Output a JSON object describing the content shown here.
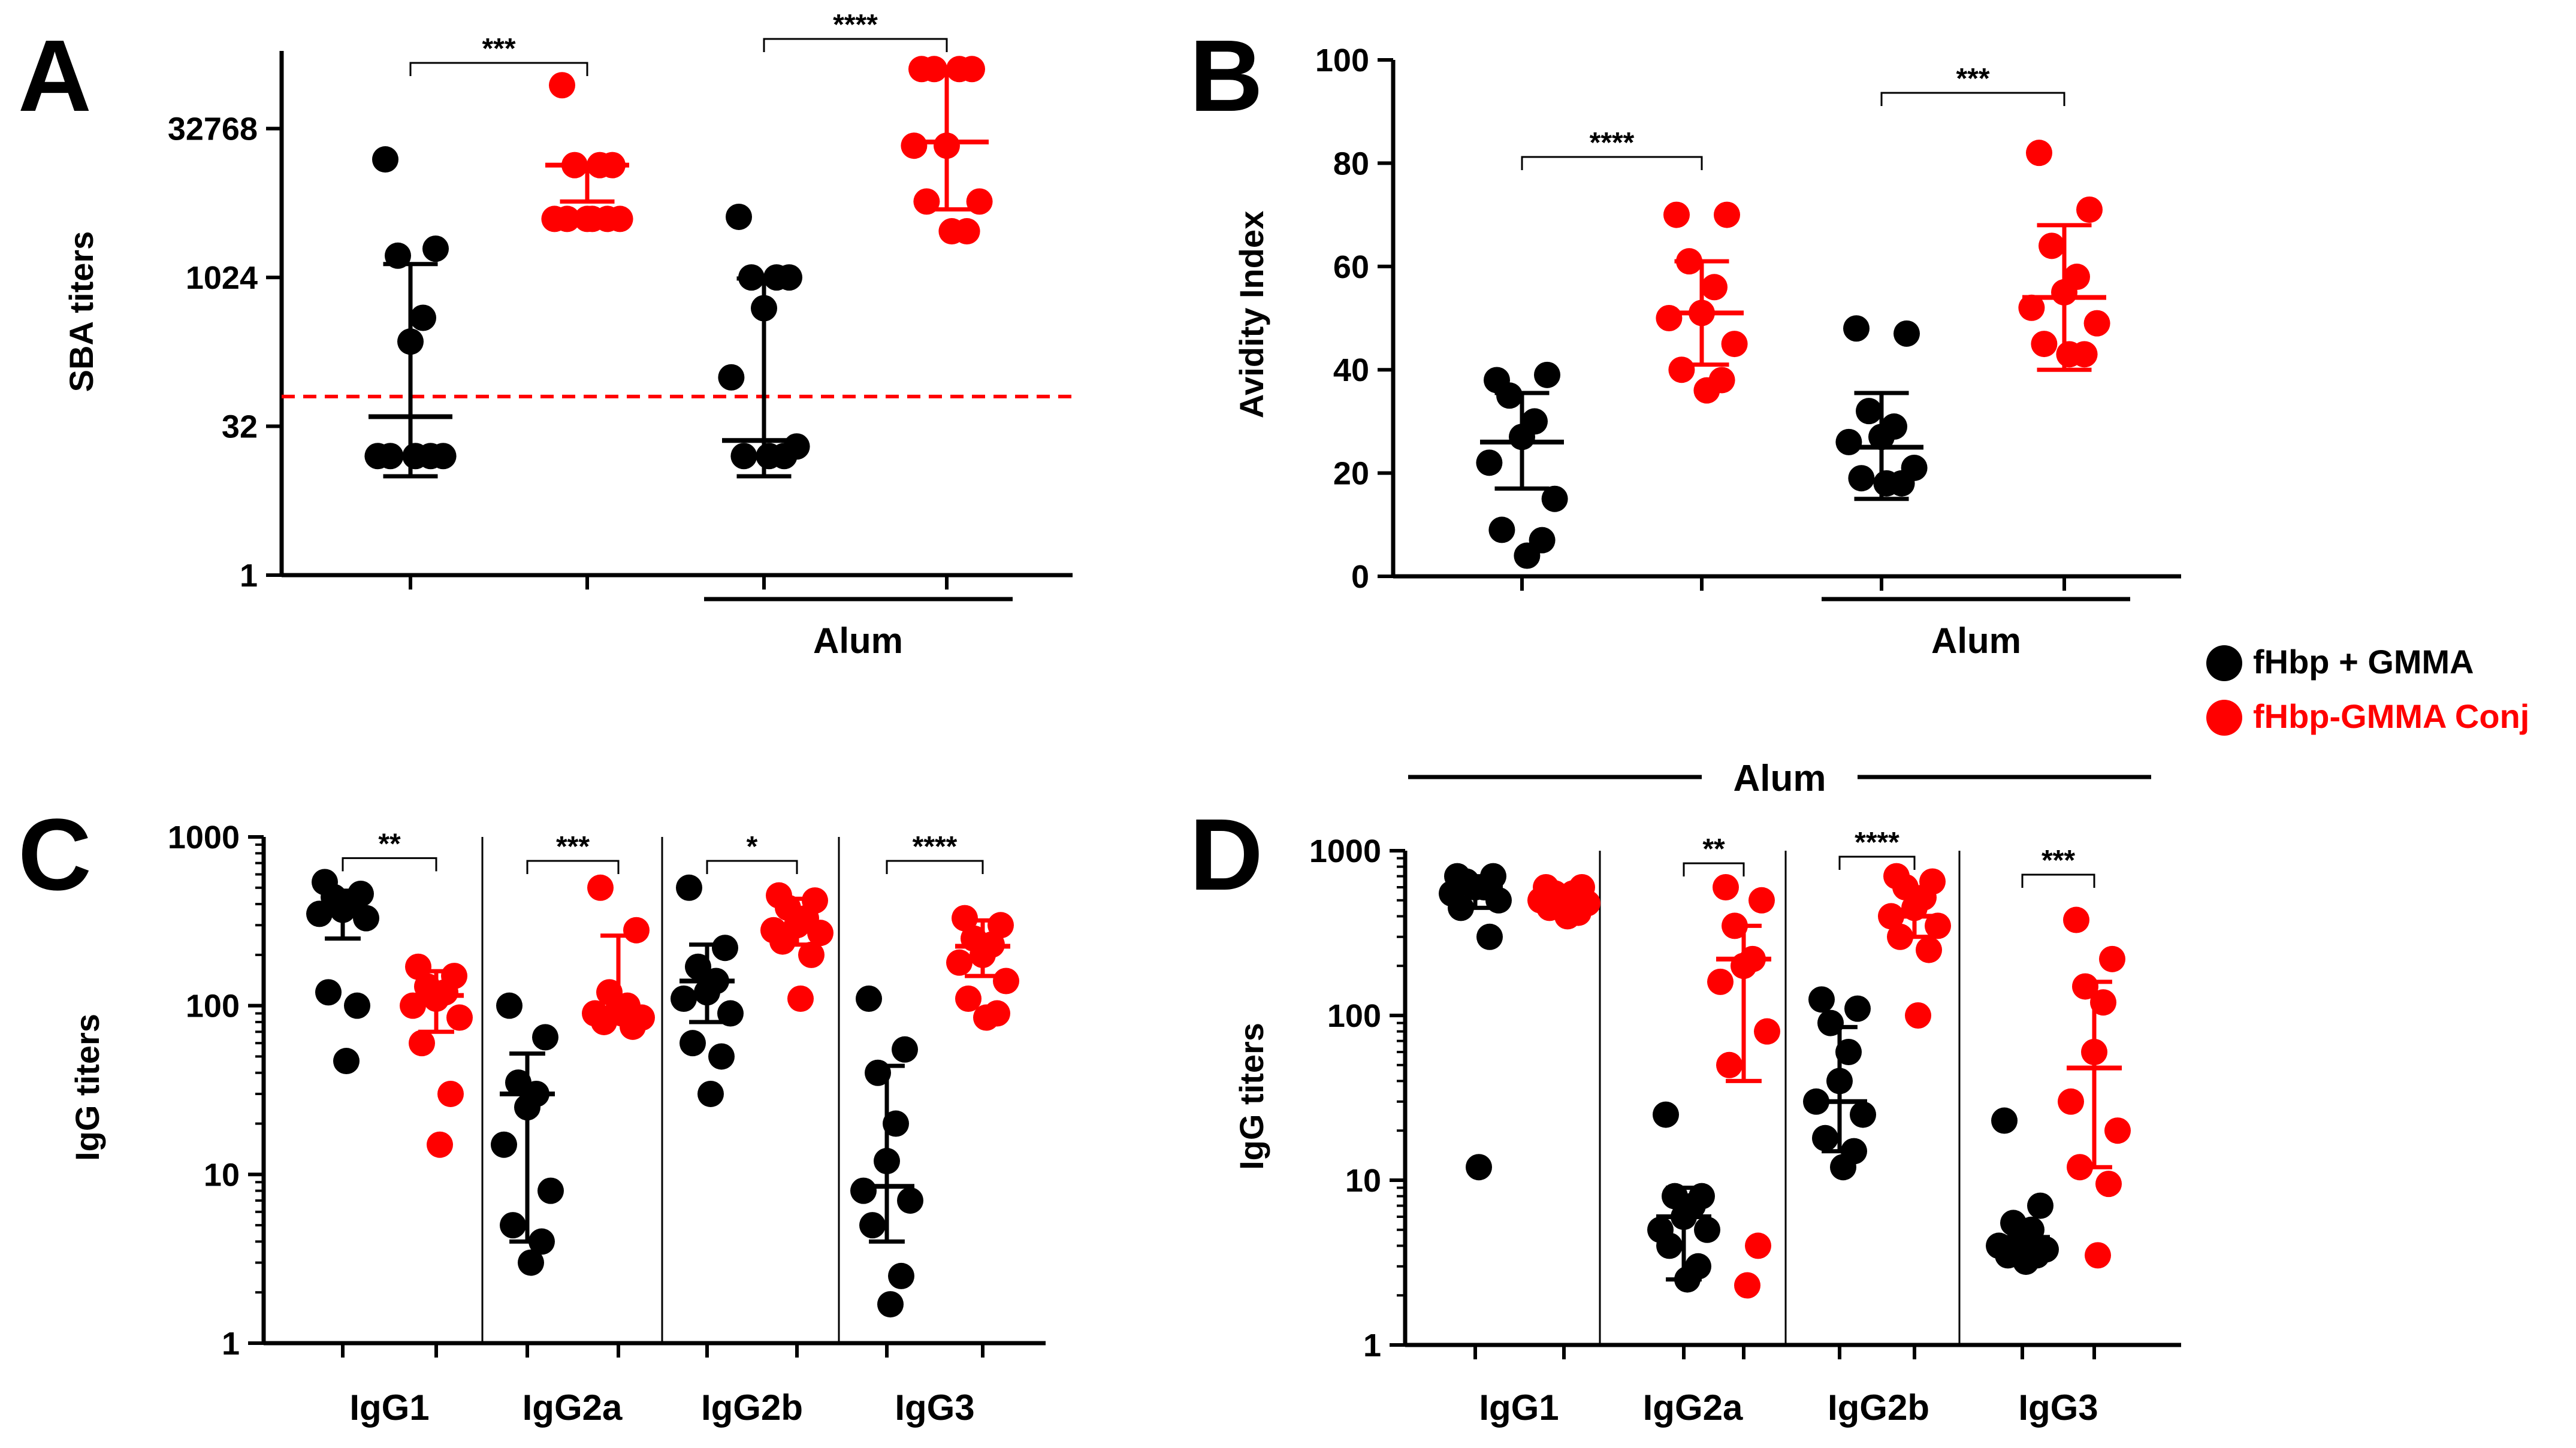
{
  "colors": {
    "groupA": "#000000",
    "groupB": "#ff0000"
  },
  "legend": {
    "items": [
      {
        "label": "fHbp + GMMA",
        "color": "#000000"
      },
      {
        "label": "fHbp-GMMA Conj",
        "color": "#ff0000"
      }
    ]
  },
  "alum_banner": "Alum",
  "chart_data": [
    {
      "id": "A",
      "type": "scatter",
      "panel_label": "A",
      "ylabel": "SBA titers",
      "yscale": "log2",
      "ylim": [
        1,
        200000
      ],
      "yticks": [
        1,
        32,
        1024,
        32768
      ],
      "ytick_labels": [
        "1",
        "32",
        "1024",
        "32768"
      ],
      "threshold": 64,
      "group_label": "Alum",
      "groups": [
        {
          "series": "fHbp + GMMA",
          "points": [
            16000,
            2000,
            1700,
            400,
            230,
            16,
            16,
            16,
            16,
            16
          ],
          "center": 40,
          "err": [
            10,
            1400
          ]
        },
        {
          "series": "fHbp-GMMA Conj",
          "points": [
            90000,
            14000,
            14000,
            14000,
            4000,
            4000,
            4000,
            4000,
            4000,
            4000
          ],
          "center": 14000,
          "err": [
            6000,
            14000
          ]
        },
        {
          "series": "fHbp + GMMA",
          "points": [
            4200,
            1024,
            1024,
            1024,
            500,
            100,
            20,
            16,
            16,
            16
          ],
          "center": 23,
          "err": [
            10,
            1000
          ]
        },
        {
          "series": "fHbp-GMMA Conj",
          "points": [
            131072,
            131072,
            131072,
            131072,
            22000,
            22000,
            6000,
            6000,
            3000,
            3000
          ],
          "center": 24000,
          "err": [
            5000,
            131072
          ]
        }
      ],
      "significance": [
        {
          "pair": [
            0,
            1
          ],
          "label": "***"
        },
        {
          "pair": [
            2,
            3
          ],
          "label": "****"
        }
      ]
    },
    {
      "id": "B",
      "type": "scatter",
      "panel_label": "B",
      "ylabel": "Avidity Index",
      "yscale": "linear",
      "ylim": [
        0,
        100
      ],
      "yticks": [
        0,
        20,
        40,
        60,
        80,
        100
      ],
      "ytick_labels": [
        "0",
        "20",
        "40",
        "60",
        "80",
        "100"
      ],
      "group_label": "Alum",
      "groups": [
        {
          "series": "fHbp + GMMA",
          "points": [
            38,
            39,
            35,
            30,
            27,
            22,
            15,
            9,
            7,
            4
          ],
          "center": 26,
          "err": [
            17,
            35.5
          ]
        },
        {
          "series": "fHbp-GMMA Conj",
          "points": [
            70,
            70,
            61,
            56,
            51,
            50,
            45,
            40,
            38,
            36
          ],
          "center": 51,
          "err": [
            41,
            61
          ]
        },
        {
          "series": "fHbp + GMMA",
          "points": [
            48,
            47,
            32,
            29,
            27,
            26,
            21,
            19,
            18,
            18
          ],
          "center": 25,
          "err": [
            15,
            35.5
          ]
        },
        {
          "series": "fHbp-GMMA Conj",
          "points": [
            82,
            71,
            64,
            58,
            55,
            52,
            49,
            45,
            43,
            43
          ],
          "center": 54,
          "err": [
            40,
            68
          ]
        }
      ],
      "significance": [
        {
          "pair": [
            0,
            1
          ],
          "label": "****"
        },
        {
          "pair": [
            2,
            3
          ],
          "label": "***"
        }
      ]
    },
    {
      "id": "C",
      "type": "scatter",
      "panel_label": "C",
      "ylabel": "IgG titers",
      "yscale": "log10",
      "ylim": [
        1,
        1000
      ],
      "yticks": [
        1,
        10,
        100,
        1000
      ],
      "ytick_labels": [
        "1",
        "10",
        "100",
        "1000"
      ],
      "categories": [
        "IgG1",
        "IgG2a",
        "IgG2b",
        "IgG3"
      ],
      "groups": [
        {
          "series": "fHbp + GMMA",
          "points": [
            540,
            460,
            440,
            400,
            370,
            350,
            330,
            120,
            100,
            47
          ],
          "center": 370,
          "err": [
            250,
            480
          ]
        },
        {
          "series": "fHbp-GMMA Conj",
          "points": [
            170,
            150,
            130,
            120,
            110,
            100,
            85,
            60,
            30,
            15
          ],
          "center": 115,
          "err": [
            70,
            160
          ]
        },
        {
          "series": "fHbp + GMMA",
          "points": [
            100,
            65,
            35,
            30,
            25,
            15,
            8,
            5,
            4,
            3
          ],
          "center": 30,
          "err": [
            4,
            52
          ]
        },
        {
          "series": "fHbp-GMMA Conj",
          "points": [
            500,
            280,
            120,
            100,
            95,
            90,
            85,
            80,
            75,
            90
          ],
          "center": 95,
          "err": [
            80,
            260
          ]
        },
        {
          "series": "fHbp + GMMA",
          "points": [
            500,
            220,
            170,
            140,
            120,
            110,
            90,
            60,
            50,
            30
          ],
          "center": 140,
          "err": [
            80,
            230
          ]
        },
        {
          "series": "fHbp-GMMA Conj",
          "points": [
            450,
            420,
            380,
            330,
            300,
            280,
            270,
            240,
            200,
            110
          ],
          "center": 280,
          "err": [
            230,
            430
          ]
        },
        {
          "series": "fHbp + GMMA",
          "points": [
            110,
            55,
            40,
            20,
            12,
            8,
            7,
            5,
            2.5,
            1.7
          ],
          "center": 8.5,
          "err": [
            4,
            44
          ]
        },
        {
          "series": "fHbp-GMMA Conj",
          "points": [
            330,
            300,
            250,
            230,
            200,
            180,
            140,
            110,
            90,
            85
          ],
          "center": 225,
          "err": [
            150,
            320
          ]
        }
      ],
      "significance": [
        {
          "pair": [
            0,
            1
          ],
          "label": "**"
        },
        {
          "pair": [
            2,
            3
          ],
          "label": "***"
        },
        {
          "pair": [
            4,
            5
          ],
          "label": "*"
        },
        {
          "pair": [
            6,
            7
          ],
          "label": "****"
        }
      ]
    },
    {
      "id": "D",
      "type": "scatter",
      "panel_label": "D",
      "ylabel": "IgG titers",
      "yscale": "log10",
      "ylim": [
        1,
        1000
      ],
      "yticks": [
        1,
        10,
        100,
        1000
      ],
      "ytick_labels": [
        "1",
        "10",
        "100",
        "1000"
      ],
      "categories": [
        "IgG1",
        "IgG2a",
        "IgG2b",
        "IgG3"
      ],
      "groups": [
        {
          "series": "fHbp + GMMA",
          "points": [
            700,
            700,
            650,
            600,
            600,
            550,
            500,
            450,
            300,
            12
          ],
          "center": 600,
          "err": [
            450,
            700
          ]
        },
        {
          "series": "fHbp-GMMA Conj",
          "points": [
            600,
            600,
            550,
            550,
            500,
            500,
            480,
            450,
            420,
            400
          ],
          "center": 520,
          "err": [
            450,
            600
          ]
        },
        {
          "series": "fHbp + GMMA",
          "points": [
            25,
            8,
            8,
            7,
            6,
            5,
            5,
            4,
            3,
            2.5
          ],
          "center": 6,
          "err": [
            2.5,
            9
          ]
        },
        {
          "series": "fHbp-GMMA Conj",
          "points": [
            600,
            500,
            350,
            220,
            200,
            160,
            80,
            50,
            4,
            2.3
          ],
          "center": 220,
          "err": [
            40,
            350
          ]
        },
        {
          "series": "fHbp + GMMA",
          "points": [
            125,
            110,
            90,
            60,
            40,
            30,
            25,
            18,
            15,
            12
          ],
          "center": 30,
          "err": [
            15,
            85
          ]
        },
        {
          "series": "fHbp-GMMA Conj",
          "points": [
            700,
            650,
            600,
            520,
            450,
            400,
            350,
            300,
            250,
            100
          ],
          "center": 400,
          "err": [
            300,
            600
          ]
        },
        {
          "series": "fHbp + GMMA",
          "points": [
            23,
            7,
            5.5,
            5,
            4.5,
            4,
            3.8,
            3.5,
            3.5,
            3.2
          ],
          "center": 4.5,
          "err": [
            3.5,
            5.5
          ]
        },
        {
          "series": "fHbp-GMMA Conj",
          "points": [
            380,
            220,
            150,
            120,
            60,
            30,
            20,
            12,
            9.5,
            3.5
          ],
          "center": 48,
          "err": [
            12,
            160
          ]
        }
      ],
      "significance": [
        {
          "pair": [
            2,
            3
          ],
          "label": "**"
        },
        {
          "pair": [
            4,
            5
          ],
          "label": "****"
        },
        {
          "pair": [
            6,
            7
          ],
          "label": "***"
        }
      ]
    }
  ]
}
